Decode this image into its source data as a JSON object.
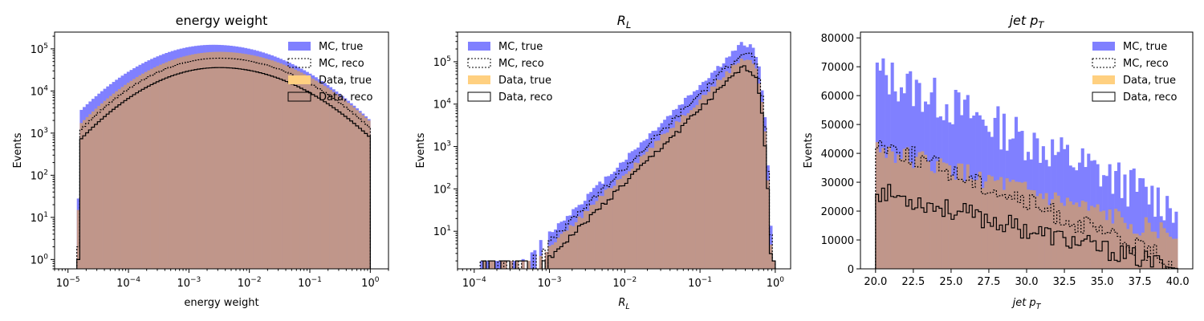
{
  "colors": {
    "mc_true": "#8080ff",
    "data_true": "#ffd080",
    "overlap": "#c0968a",
    "reco_line": "#000000"
  },
  "legend": [
    "MC, true",
    "MC, reco",
    "Data, true",
    "Data, reco"
  ],
  "chart_data": [
    {
      "type": "histogram",
      "title": "energy weight",
      "xlabel": "energy weight",
      "ylabel": "Events",
      "xscale": "log",
      "yscale": "log",
      "xlim": [
        6e-06,
        2
      ],
      "ylim": [
        0.6,
        250000
      ],
      "x_ticks": [
        {
          "value": 1e-05,
          "base": "10",
          "exp": "−5"
        },
        {
          "value": 0.0001,
          "base": "10",
          "exp": "−4"
        },
        {
          "value": 0.001,
          "base": "10",
          "exp": "−3"
        },
        {
          "value": 0.01,
          "base": "10",
          "exp": "−2"
        },
        {
          "value": 0.1,
          "base": "10",
          "exp": "−1"
        },
        {
          "value": 1,
          "base": "10",
          "exp": "0"
        }
      ],
      "y_ticks": [
        {
          "value": 1,
          "base": "10",
          "exp": "0"
        },
        {
          "value": 10,
          "base": "10",
          "exp": "1"
        },
        {
          "value": 100,
          "base": "10",
          "exp": "2"
        },
        {
          "value": 1000,
          "base": "10",
          "exp": "3"
        },
        {
          "value": 10000,
          "base": "10",
          "exp": "4"
        },
        {
          "value": 100000,
          "base": "10",
          "exp": "5"
        }
      ],
      "bin_range": [
        1.4e-05,
        1.0
      ],
      "series_profile": {
        "mc_true": {
          "peak_log_x": -2.6,
          "peak": 125000,
          "low_start": 28
        },
        "mc_reco": {
          "peak_log_x": -2.5,
          "peak": 60000,
          "low_start": 2
        },
        "data_true": {
          "peak_log_x": -2.5,
          "peak": 85000,
          "low_start": 15
        },
        "data_reco": {
          "peak_log_x": -2.5,
          "peak": 36000,
          "low_start": 1
        }
      },
      "legend_location": "upper right"
    },
    {
      "type": "histogram",
      "title": "R",
      "title_sub": "L",
      "xlabel": "R",
      "xlabel_sub": "L",
      "ylabel": "Events",
      "xscale": "log",
      "yscale": "log",
      "xlim": [
        6e-05,
        1.6
      ],
      "ylim": [
        1.3,
        500000
      ],
      "x_ticks": [
        {
          "value": 0.0001,
          "base": "10",
          "exp": "−4"
        },
        {
          "value": 0.001,
          "base": "10",
          "exp": "−3"
        },
        {
          "value": 0.01,
          "base": "10",
          "exp": "−2"
        },
        {
          "value": 0.1,
          "base": "10",
          "exp": "−1"
        },
        {
          "value": 1,
          "base": "10",
          "exp": "0"
        }
      ],
      "y_ticks": [
        {
          "value": 10,
          "base": "10",
          "exp": "1"
        },
        {
          "value": 100,
          "base": "10",
          "exp": "2"
        },
        {
          "value": 1000,
          "base": "10",
          "exp": "3"
        },
        {
          "value": 10000,
          "base": "10",
          "exp": "4"
        },
        {
          "value": 100000,
          "base": "10",
          "exp": "5"
        }
      ],
      "bin_range": [
        0.00012,
        1.0
      ],
      "series_profile": {
        "mc_true": {
          "peak_log_x": -0.45,
          "peak": 260000
        },
        "mc_reco": {
          "peak_log_x": -0.45,
          "peak": 160000
        },
        "data_true": {
          "peak_log_x": -0.45,
          "peak": 120000
        },
        "data_reco": {
          "peak_log_x": -0.45,
          "peak": 70000
        }
      },
      "legend_location": "upper left"
    },
    {
      "type": "histogram",
      "title": "jet p",
      "title_sub": "T",
      "xlabel": "jet p",
      "xlabel_sub": "T",
      "ylabel": "Events",
      "xscale": "linear",
      "yscale": "linear",
      "xlim": [
        19.0,
        41.0
      ],
      "ylim": [
        0,
        82000
      ],
      "x_ticks": [
        {
          "value": 20.0,
          "label": "20.0"
        },
        {
          "value": 22.5,
          "label": "22.5"
        },
        {
          "value": 25.0,
          "label": "25.0"
        },
        {
          "value": 27.5,
          "label": "27.5"
        },
        {
          "value": 30.0,
          "label": "30.0"
        },
        {
          "value": 32.5,
          "label": "32.5"
        },
        {
          "value": 35.0,
          "label": "35.0"
        },
        {
          "value": 37.5,
          "label": "37.5"
        },
        {
          "value": 40.0,
          "label": "40.0"
        }
      ],
      "y_ticks": [
        {
          "value": 0,
          "label": "0"
        },
        {
          "value": 10000,
          "label": "10000"
        },
        {
          "value": 20000,
          "label": "20000"
        },
        {
          "value": 30000,
          "label": "30000"
        },
        {
          "value": 40000,
          "label": "40000"
        },
        {
          "value": 50000,
          "label": "50000"
        },
        {
          "value": 60000,
          "label": "60000"
        },
        {
          "value": 70000,
          "label": "70000"
        },
        {
          "value": 80000,
          "label": "80000"
        }
      ],
      "bin_range": [
        20.0,
        40.0
      ],
      "series_profile": {
        "mc_true": {
          "start": 68000,
          "end": 21000
        },
        "mc_reco": {
          "start": 44000,
          "end": 1500
        },
        "data_true": {
          "start": 42000,
          "end": 11000
        },
        "data_reco": {
          "start": 27000,
          "end": 0
        }
      },
      "legend_location": "upper right"
    }
  ]
}
